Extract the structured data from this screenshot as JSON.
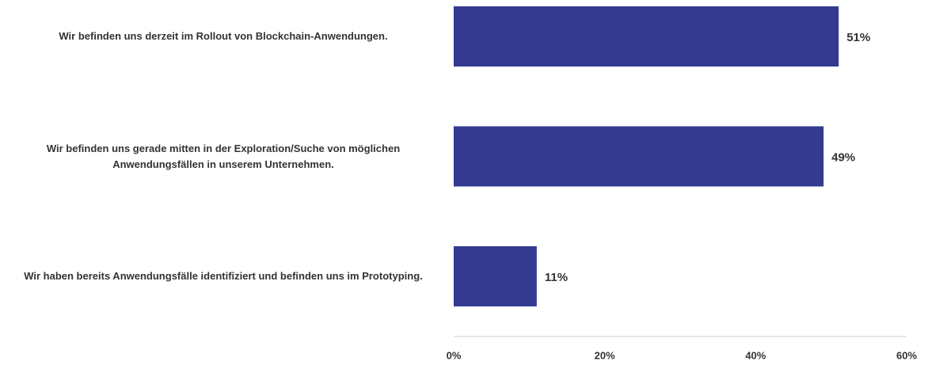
{
  "chart_data": {
    "type": "bar",
    "orientation": "horizontal",
    "categories": [
      "Wir befinden uns derzeit im Rollout von Blockchain-Anwendungen.",
      "Wir befinden uns gerade mitten in der Exploration/Suche von möglichen Anwendungsfällen in unserem Unternehmen.",
      "Wir haben bereits Anwendungsfälle identifiziert und befinden uns im Prototyping."
    ],
    "values": [
      51,
      49,
      11
    ],
    "value_labels": [
      "51%",
      "49%",
      "11%"
    ],
    "color": "#333a8f",
    "xlim": [
      0,
      60
    ],
    "xticks": [
      {
        "value": 0,
        "label": "0%"
      },
      {
        "value": 20,
        "label": "20%"
      },
      {
        "value": 40,
        "label": "40%"
      },
      {
        "value": 60,
        "label": "60%"
      }
    ]
  }
}
